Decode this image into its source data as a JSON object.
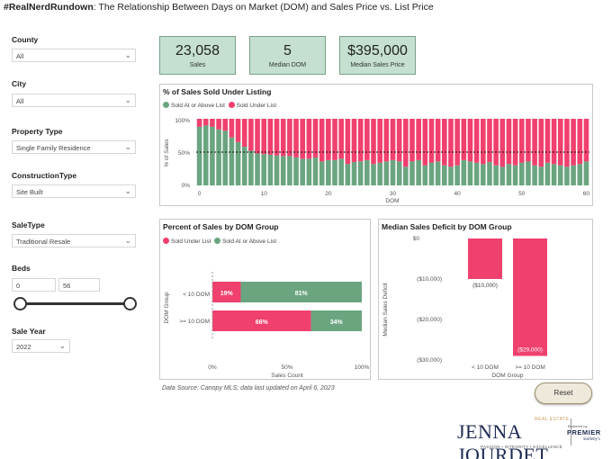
{
  "title": {
    "hashtag": "#RealNerdRundown",
    "text": ":  The Relationship Between Days on Market (DOM) and Sales Price vs. List Price"
  },
  "filters": {
    "county": {
      "label": "County",
      "value": "All"
    },
    "city": {
      "label": "City",
      "value": "All"
    },
    "property_type": {
      "label": "Property Type",
      "value": "Single Family Residence"
    },
    "construction_type": {
      "label": "ConstructionType",
      "value": "Site Built"
    },
    "sale_type": {
      "label": "SaleType",
      "value": "Traditional Resale"
    },
    "beds": {
      "label": "Beds",
      "min": "0",
      "max": "56"
    },
    "sale_year": {
      "label": "Sale Year",
      "value": "2022"
    }
  },
  "kpis": [
    {
      "value": "23,058",
      "label": "Sales"
    },
    {
      "value": "5",
      "label": "Median DOM"
    },
    {
      "value": "$395,000",
      "label": "Median Sales Price"
    }
  ],
  "colors": {
    "under": "#f0406e",
    "atabove": "#6aa57f",
    "kpi_bg": "#c5e0d0"
  },
  "chart_data": [
    {
      "type": "bar",
      "stacked": true,
      "title": "% of Sales Sold Under Listing",
      "legend": [
        "Sold At or Above List",
        "Sold Under List"
      ],
      "xlabel": "DOM",
      "ylabel": "% of Sales",
      "ylim": [
        0,
        100
      ],
      "yticks": [
        "0%",
        "50%",
        "100%"
      ],
      "xticks": [
        "0",
        "10",
        "20",
        "30",
        "40",
        "50",
        "60"
      ],
      "reference_line": 50,
      "x": [
        0,
        1,
        2,
        3,
        4,
        5,
        6,
        7,
        8,
        9,
        10,
        11,
        12,
        13,
        14,
        15,
        16,
        17,
        18,
        19,
        20,
        21,
        22,
        23,
        24,
        25,
        26,
        27,
        28,
        29,
        30,
        31,
        32,
        33,
        34,
        35,
        36,
        37,
        38,
        39,
        40,
        41,
        42,
        43,
        44,
        45,
        46,
        47,
        48,
        49,
        50,
        51,
        52,
        53,
        54,
        55,
        56,
        57,
        58,
        59,
        60
      ],
      "series": [
        {
          "name": "Sold At or Above List",
          "values": [
            88,
            90,
            88,
            84,
            82,
            72,
            65,
            58,
            52,
            48,
            47,
            46,
            45,
            44,
            44,
            42,
            40,
            40,
            42,
            36,
            38,
            38,
            40,
            32,
            35,
            36,
            38,
            32,
            34,
            36,
            38,
            36,
            28,
            36,
            38,
            30,
            34,
            36,
            30,
            28,
            30,
            38,
            36,
            34,
            32,
            35,
            30,
            28,
            32,
            30,
            34,
            36,
            30,
            28,
            34,
            32,
            30,
            28,
            30,
            32,
            36
          ]
        },
        {
          "name": "Sold Under List",
          "values": [
            12,
            10,
            12,
            16,
            18,
            28,
            35,
            42,
            48,
            52,
            53,
            54,
            55,
            56,
            56,
            58,
            60,
            60,
            58,
            64,
            62,
            62,
            60,
            68,
            65,
            64,
            62,
            68,
            66,
            64,
            62,
            64,
            72,
            64,
            62,
            70,
            66,
            64,
            70,
            72,
            70,
            62,
            64,
            66,
            68,
            65,
            70,
            72,
            68,
            70,
            66,
            64,
            70,
            72,
            66,
            68,
            70,
            72,
            70,
            68,
            64
          ]
        }
      ]
    },
    {
      "type": "bar",
      "orientation": "horizontal",
      "stacked": true,
      "title": "Percent of Sales by DOM Group",
      "legend": [
        "Sold Under List",
        "Sold At or Above List"
      ],
      "categories": [
        "< 10 DOM",
        ">= 10 DOM"
      ],
      "ylabel": "DOM Group",
      "xlabel": "Sales Count",
      "xticks": [
        "0%",
        "50%",
        "100%"
      ],
      "series": [
        {
          "name": "Sold Under List",
          "values": [
            19,
            66
          ],
          "labels": [
            "19%",
            "66%"
          ]
        },
        {
          "name": "Sold At or Above List",
          "values": [
            81,
            34
          ],
          "labels": [
            "81%",
            "34%"
          ]
        }
      ]
    },
    {
      "type": "bar",
      "title": "Median Sales Deficit by DOM Group",
      "categories": [
        "< 10 DOM",
        ">= 10 DOM"
      ],
      "values": [
        -10000,
        -29000
      ],
      "labels": [
        "($10,000)",
        "($29,000)"
      ],
      "xlabel": "DOM Group",
      "ylabel": "Median Sales Deficit",
      "ylim": [
        -30000,
        0
      ],
      "yticks": [
        "$0",
        "($10,000)",
        "($20,000)",
        "($30,000)"
      ]
    }
  ],
  "footer": {
    "data_source": "Data Source:  Canopy MLS; data last updated on April 6, 2023",
    "reset_label": "Reset"
  },
  "logo": {
    "name": "JENNA JOURDET",
    "tag": "REAL ESTATE",
    "motto": "PASSION • INTEGRITY • EXCELLENCE",
    "brokerage_top": "Brokered by",
    "brokerage": "PREMIER",
    "brokerage_sub": "Sotheby's"
  }
}
